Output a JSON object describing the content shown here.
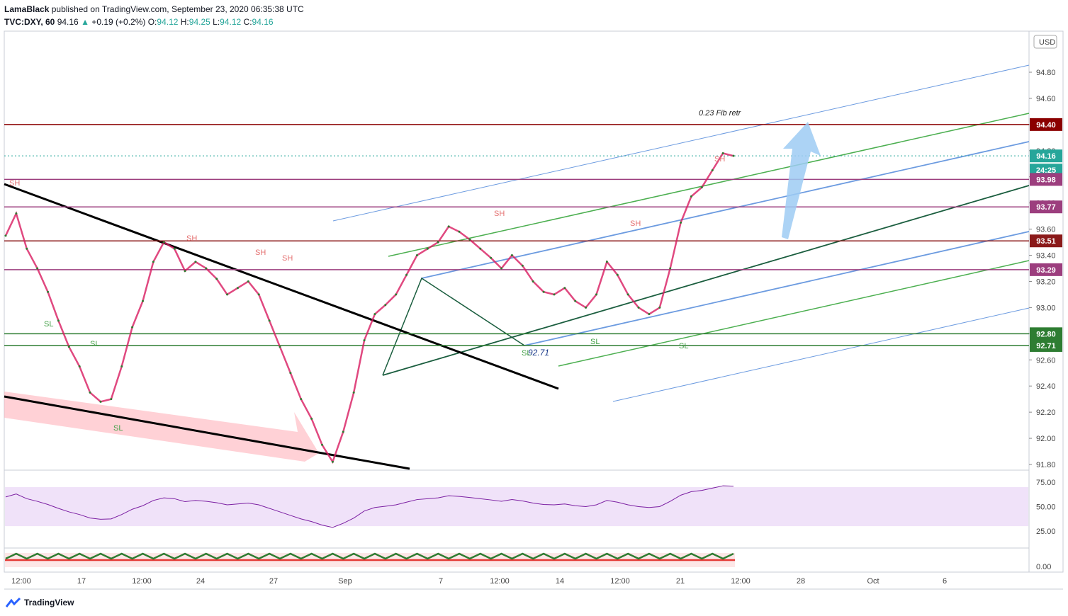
{
  "header": {
    "author": "LamaBlack",
    "published_text": "published on TradingView.com, September 23, 2020 06:35:38 UTC",
    "symbol": "TVC:DXY, 60",
    "last": "94.16",
    "change": "+0.19 (+0.2%)",
    "open_label": "O:",
    "open": "94.12",
    "high_label": "H:",
    "high": "94.25",
    "low_label": "L:",
    "low": "94.12",
    "close_label": "C:",
    "close": "94.16"
  },
  "footer": {
    "brand": "TradingView"
  },
  "chart_data": {
    "type": "line",
    "currency": "USD",
    "price_axis": {
      "range": [
        91.72,
        95.05
      ],
      "ticks": [
        "94.80",
        "94.60",
        "94.40",
        "94.20",
        "94.00",
        "93.80",
        "93.60",
        "93.40",
        "93.20",
        "93.00",
        "92.80",
        "92.60",
        "92.40",
        "92.20",
        "92.00",
        "91.80"
      ]
    },
    "time_axis": {
      "labels": [
        "12:00",
        "17",
        "12:00",
        "24",
        "27",
        "Sep",
        "7",
        "12:00",
        "14",
        "12:00",
        "21",
        "12:00",
        "28",
        "Oct",
        "6"
      ]
    },
    "price_markers": [
      {
        "value": "94.40",
        "color": "#8b0000"
      },
      {
        "value": "94.16",
        "color": "#26a69a"
      },
      {
        "value": "24:25",
        "color": "#26a69a"
      },
      {
        "value": "93.98",
        "color": "#9c3e7e"
      },
      {
        "value": "93.77",
        "color": "#9c3e7e"
      },
      {
        "value": "93.51",
        "color": "#8b1a1a"
      },
      {
        "value": "93.29",
        "color": "#9c3e7e"
      },
      {
        "value": "92.80",
        "color": "#2e7d32"
      },
      {
        "value": "92.71",
        "color": "#2e7d32"
      }
    ],
    "horizontal_levels": [
      {
        "value": 94.4,
        "color": "#8b0000"
      },
      {
        "value": 93.98,
        "color": "#9c3e7e"
      },
      {
        "value": 93.77,
        "color": "#9c3e7e"
      },
      {
        "value": 93.51,
        "color": "#8b1a1a"
      },
      {
        "value": 93.29,
        "color": "#9c3e7e"
      },
      {
        "value": 92.8,
        "color": "#2e7d32"
      },
      {
        "value": 92.71,
        "color": "#2e7d32"
      }
    ],
    "annotations": {
      "fib_label": "0.23 Fib retr",
      "swing_low_label": "92.71",
      "swing_high_tag": "SH",
      "swing_low_tag": "SL"
    },
    "series_close": {
      "x": [
        0,
        15,
        30,
        45,
        60,
        75,
        90,
        105,
        120,
        135,
        150,
        165,
        180,
        195,
        210,
        225,
        240,
        255,
        270,
        285,
        300,
        315,
        330,
        345,
        360,
        375,
        390,
        405,
        420,
        435,
        450,
        465,
        480,
        495,
        510,
        525,
        540,
        555,
        570,
        585,
        600,
        615,
        630,
        645,
        660,
        675,
        690,
        705,
        720,
        735,
        750,
        765,
        780,
        795,
        810,
        825,
        840,
        855,
        870,
        885,
        900,
        915,
        930,
        945,
        960,
        975,
        990,
        1005,
        1020,
        1035
      ],
      "y": [
        93.55,
        93.72,
        93.45,
        93.3,
        93.12,
        92.9,
        92.7,
        92.55,
        92.35,
        92.28,
        92.3,
        92.55,
        92.85,
        93.05,
        93.35,
        93.5,
        93.45,
        93.28,
        93.35,
        93.3,
        93.22,
        93.1,
        93.15,
        93.2,
        93.1,
        92.9,
        92.7,
        92.5,
        92.3,
        92.15,
        91.95,
        91.82,
        92.05,
        92.35,
        92.75,
        92.95,
        93.02,
        93.1,
        93.25,
        93.4,
        93.45,
        93.5,
        93.62,
        93.58,
        93.52,
        93.45,
        93.38,
        93.3,
        93.4,
        93.32,
        93.2,
        93.12,
        93.1,
        93.15,
        93.05,
        93.0,
        93.1,
        93.35,
        93.25,
        93.1,
        93.0,
        92.95,
        93.0,
        93.3,
        93.65,
        93.85,
        93.92,
        94.05,
        94.18,
        94.16
      ]
    },
    "rsi": {
      "ticks": [
        "75.00",
        "50.00",
        "25.00"
      ],
      "overbought": 70,
      "oversold": 30
    },
    "oscillator": {
      "ticks": [
        "0.00"
      ]
    }
  }
}
